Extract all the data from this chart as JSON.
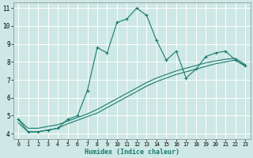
{
  "title": "",
  "xlabel": "Humidex (Indice chaleur)",
  "ylabel": "",
  "background_color": "#cde8e5",
  "line_color": "#1a7a6e",
  "grid_color": "#ffffff",
  "xlim": [
    -0.5,
    23.5
  ],
  "ylim": [
    3.7,
    11.3
  ],
  "xticks": [
    0,
    1,
    2,
    3,
    4,
    5,
    6,
    7,
    8,
    9,
    10,
    11,
    12,
    13,
    14,
    15,
    16,
    17,
    18,
    19,
    20,
    21,
    22,
    23
  ],
  "yticks": [
    4,
    5,
    6,
    7,
    8,
    9,
    10,
    11
  ],
  "series1_x": [
    0,
    1,
    2,
    3,
    4,
    5,
    6,
    7,
    8,
    9,
    10,
    11,
    12,
    13,
    14,
    15,
    16,
    17,
    18,
    19,
    20,
    21,
    22,
    23
  ],
  "series1_y": [
    4.8,
    4.1,
    4.1,
    4.2,
    4.3,
    4.8,
    5.0,
    6.4,
    8.8,
    8.5,
    10.2,
    10.4,
    11.0,
    10.6,
    9.2,
    8.1,
    8.6,
    7.1,
    7.6,
    8.3,
    8.5,
    8.6,
    8.1,
    7.8
  ],
  "series2_x": [
    0,
    1,
    2,
    3,
    4,
    5,
    6,
    7,
    8,
    9,
    10,
    11,
    12,
    13,
    14,
    15,
    16,
    17,
    18,
    19,
    20,
    21,
    22,
    23
  ],
  "series2_y": [
    4.8,
    4.3,
    4.3,
    4.4,
    4.5,
    4.7,
    4.9,
    5.1,
    5.35,
    5.65,
    5.95,
    6.25,
    6.55,
    6.85,
    7.1,
    7.3,
    7.5,
    7.65,
    7.8,
    7.95,
    8.05,
    8.15,
    8.2,
    7.85
  ],
  "series3_x": [
    0,
    1,
    2,
    3,
    4,
    5,
    6,
    7,
    8,
    9,
    10,
    11,
    12,
    13,
    14,
    15,
    16,
    17,
    18,
    19,
    20,
    21,
    22,
    23
  ],
  "series3_y": [
    4.6,
    4.1,
    4.1,
    4.2,
    4.3,
    4.55,
    4.75,
    4.95,
    5.15,
    5.45,
    5.75,
    6.05,
    6.35,
    6.65,
    6.9,
    7.1,
    7.3,
    7.45,
    7.6,
    7.75,
    7.9,
    8.0,
    8.1,
    7.75
  ]
}
